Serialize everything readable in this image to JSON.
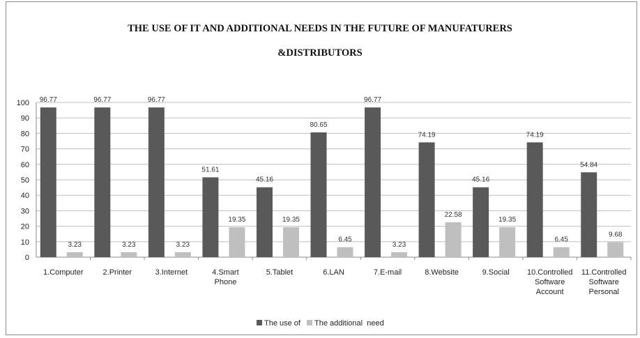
{
  "chart_data": {
    "type": "bar",
    "title_lines": [
      "THE USE OF IT AND ADDITIONAL NEEDS IN THE FUTURE OF MANUFATURERS",
      "&DISTRIBUTORS"
    ],
    "categories": [
      [
        "1.Computer"
      ],
      [
        "2.Printer"
      ],
      [
        "3.Internet"
      ],
      [
        "4.Smart",
        "Phone"
      ],
      [
        "5.Tablet"
      ],
      [
        "6.LAN"
      ],
      [
        "7.E-mail"
      ],
      [
        "8.Website"
      ],
      [
        "9.Social"
      ],
      [
        "10.Controlled",
        "Software",
        "Account"
      ],
      [
        "11.Controlled",
        "Software",
        "Personal"
      ]
    ],
    "series": [
      {
        "name": "The use of",
        "color": "#595959",
        "values": [
          96.77,
          96.77,
          96.77,
          51.61,
          45.16,
          80.65,
          96.77,
          74.19,
          45.16,
          74.19,
          54.84
        ],
        "labels": [
          "96.77",
          "96.77",
          "96.77",
          "51.61",
          "45.16",
          "80.65",
          "96.77",
          "74.19",
          "45.16",
          "74.19",
          "54.84"
        ]
      },
      {
        "name": "The additional  need",
        "color": "#bfbfbf",
        "values": [
          3.23,
          3.23,
          3.23,
          19.35,
          19.35,
          6.45,
          3.23,
          22.58,
          19.35,
          6.45,
          9.68
        ],
        "labels": [
          "3.23",
          "3.23",
          "3.23",
          "19.35",
          "19.35",
          "6.45",
          "3.23",
          "22.58",
          "19.35",
          "6.45",
          "9.68"
        ]
      }
    ],
    "ylim": [
      0,
      100
    ],
    "yticks": [
      0,
      10,
      20,
      30,
      40,
      50,
      60,
      70,
      80,
      90,
      100
    ],
    "grid": true,
    "legend_position": "bottom",
    "xlabel": "",
    "ylabel": ""
  }
}
